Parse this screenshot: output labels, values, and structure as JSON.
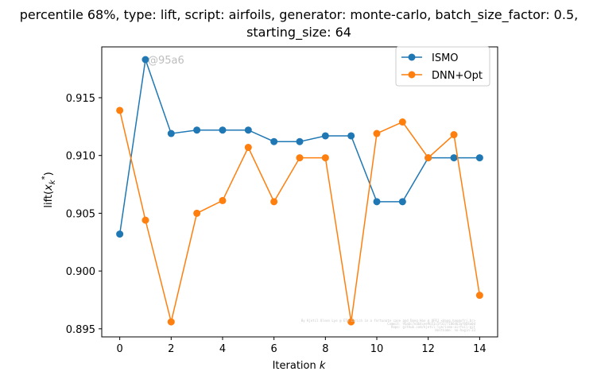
{
  "chart_data": {
    "type": "line",
    "title_lines": [
      "percentile 68%, type: lift, script: airfoils, generator: monte-carlo, batch_size_factor: 0.5,",
      "starting_size: 64"
    ],
    "xlabel_prefix": "Iteration ",
    "xlabel_var": "k",
    "ylabel": "lift(x_k^*)",
    "xlim": [
      -0.7,
      14.7
    ],
    "ylim": [
      0.8943,
      0.9194
    ],
    "xticks": [
      0,
      2,
      4,
      6,
      8,
      10,
      12,
      14
    ],
    "xtick_labels": [
      "0",
      "2",
      "4",
      "6",
      "8",
      "10",
      "12",
      "14"
    ],
    "yticks": [
      0.895,
      0.9,
      0.905,
      0.91,
      0.915
    ],
    "ytick_labels": [
      "0.895",
      "0.900",
      "0.905",
      "0.910",
      "0.915"
    ],
    "grid": false,
    "legend_position": "top-right",
    "annotation": {
      "text": "@95a6",
      "x": 1,
      "y": 0.9183
    },
    "watermark_lines": [
      "By Kjetil Olsen Lye @ ETH Zurich in a fortunate case and Dong Hao @ UFRJ <dong.hao@ufrj.br>",
      "Commit: 95a6c7ea64cee9b51c5f3177186463af8d4a0d",
      "Repo: github.com/kjetil-lye/ismo-airfoil-git",
      "Hostname: no-hugin-33"
    ],
    "x": [
      0,
      1,
      2,
      3,
      4,
      5,
      6,
      7,
      8,
      9,
      10,
      11,
      12,
      13,
      14
    ],
    "series": [
      {
        "name": "ISMO",
        "color": "#1f77b4",
        "values": [
          0.9032,
          0.9183,
          0.9119,
          0.9122,
          0.9122,
          0.9122,
          0.9112,
          0.9112,
          0.9117,
          0.9117,
          0.906,
          0.906,
          0.9098,
          0.9098,
          0.9098
        ]
      },
      {
        "name": "DNN+Opt",
        "color": "#ff7f0e",
        "values": [
          0.9139,
          0.9044,
          0.8956,
          0.905,
          0.9061,
          0.9107,
          0.906,
          0.9098,
          0.9098,
          0.8956,
          0.9119,
          0.9129,
          0.9098,
          0.9118,
          0.8979
        ]
      }
    ]
  }
}
